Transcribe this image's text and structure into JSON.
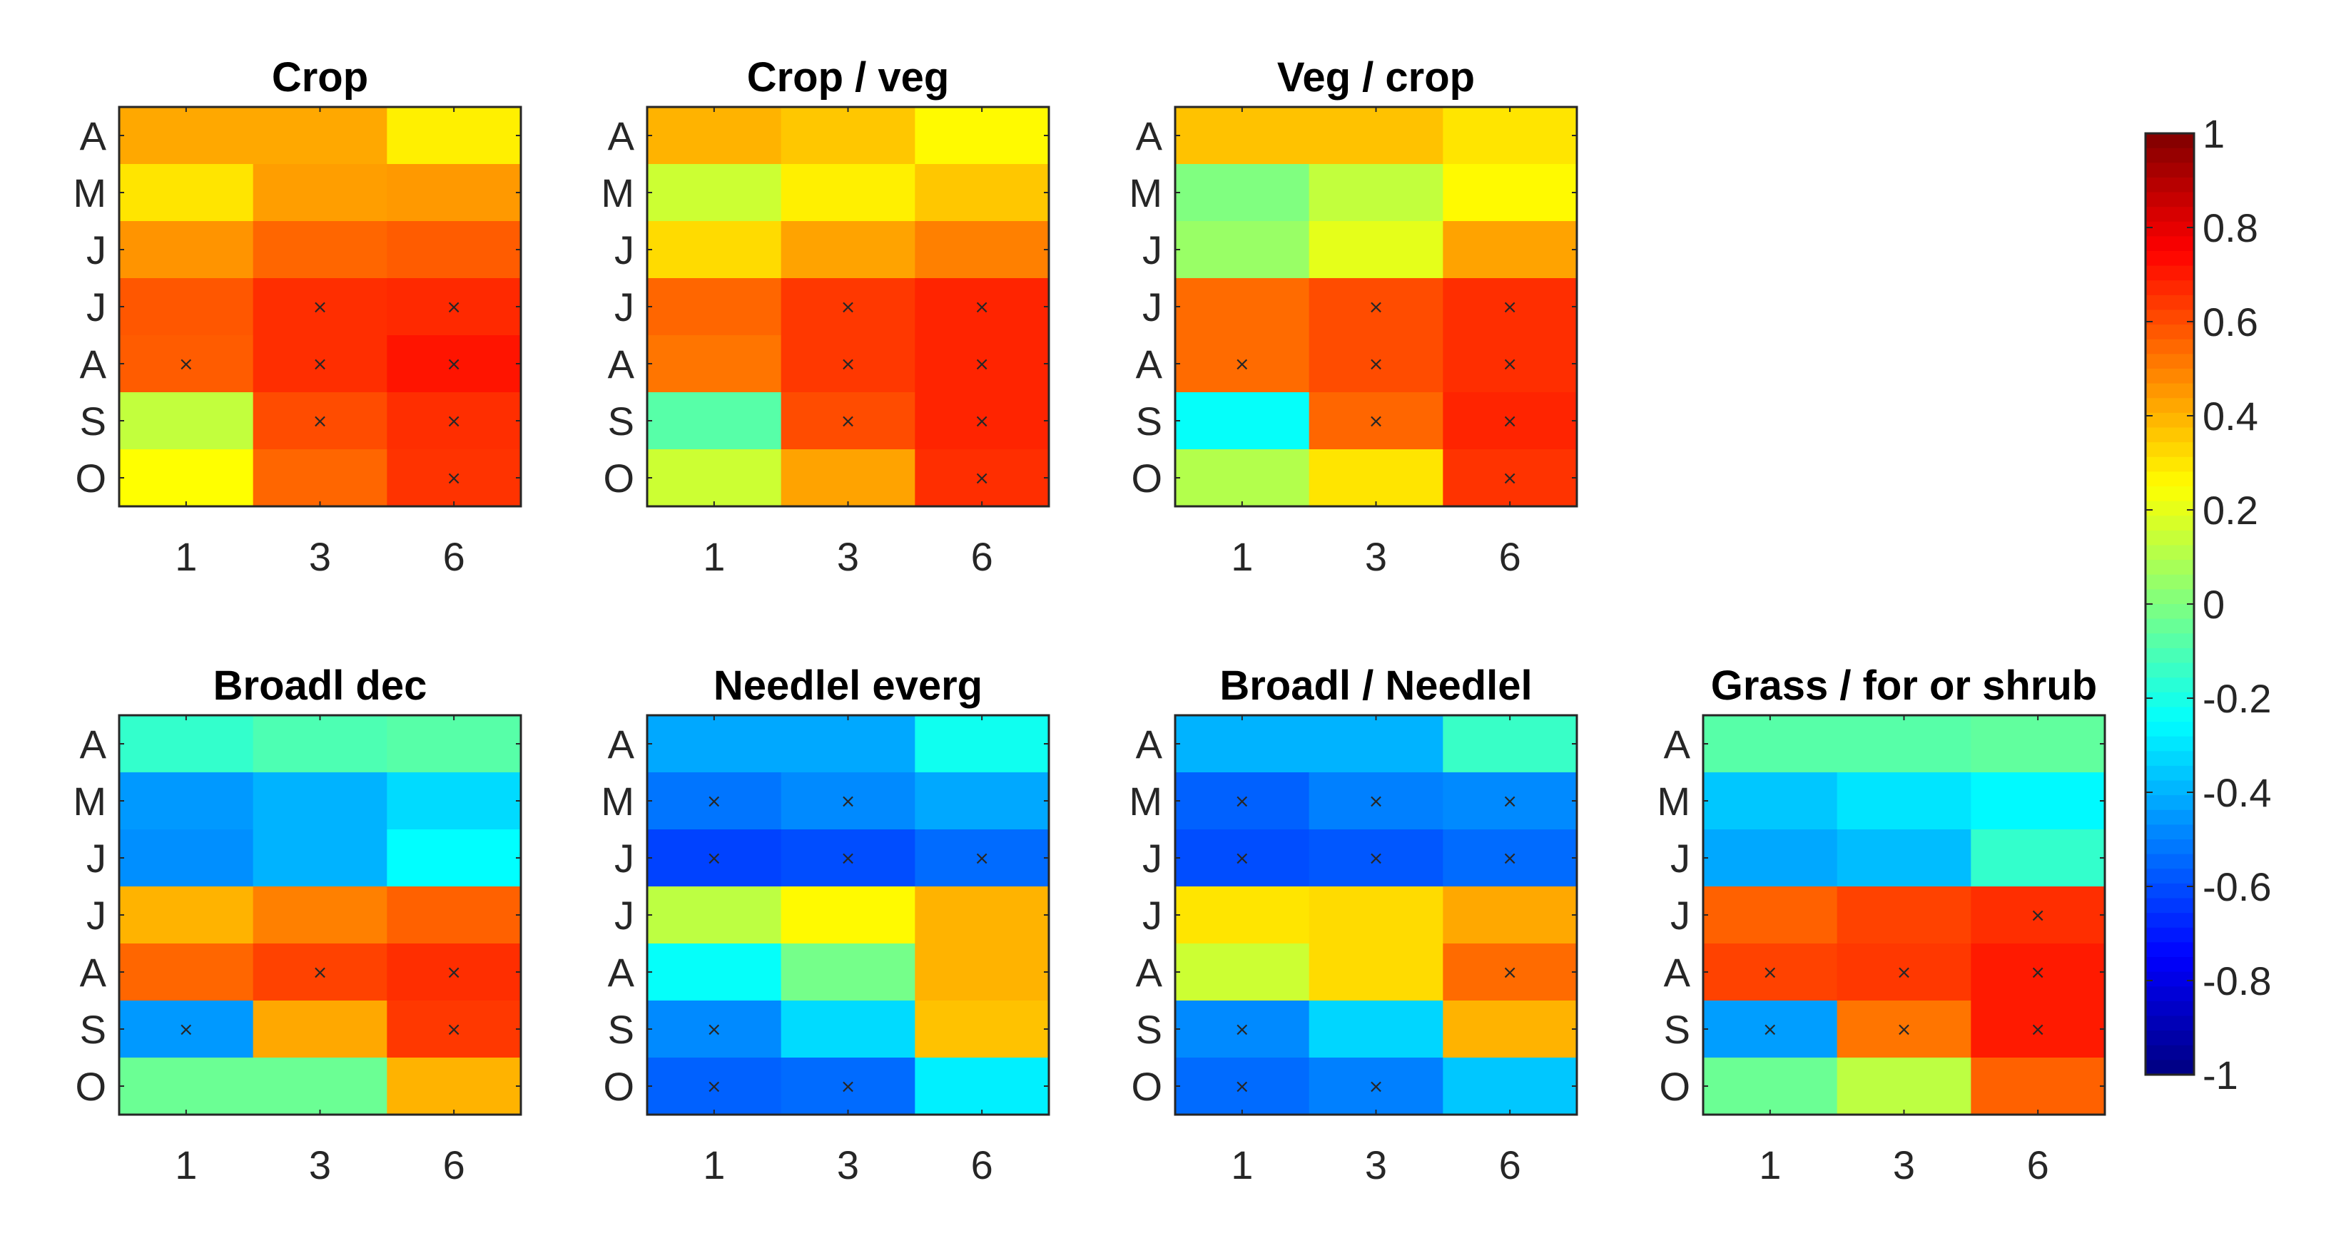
{
  "chart_data": [
    {
      "type": "heatmap",
      "title": "Crop",
      "x_tick_labels": [
        "1",
        "3",
        "6"
      ],
      "y_tick_labels": [
        "A",
        "M",
        "J",
        "J",
        "A",
        "S",
        "O"
      ],
      "values": [
        [
          0.42,
          0.42,
          0.28
        ],
        [
          0.3,
          0.44,
          0.45
        ],
        [
          0.46,
          0.55,
          0.57
        ],
        [
          0.58,
          0.66,
          0.67
        ],
        [
          0.57,
          0.66,
          0.71
        ],
        [
          0.13,
          0.6,
          0.66
        ],
        [
          0.25,
          0.55,
          0.65
        ]
      ],
      "significant": [
        [
          0,
          0,
          0
        ],
        [
          0,
          0,
          0
        ],
        [
          0,
          0,
          0
        ],
        [
          0,
          1,
          1
        ],
        [
          1,
          1,
          1
        ],
        [
          0,
          1,
          1
        ],
        [
          0,
          0,
          1
        ]
      ]
    },
    {
      "type": "heatmap",
      "title": "Crop / veg",
      "x_tick_labels": [
        "1",
        "3",
        "6"
      ],
      "y_tick_labels": [
        "A",
        "M",
        "J",
        "J",
        "A",
        "S",
        "O"
      ],
      "values": [
        [
          0.4,
          0.36,
          0.26
        ],
        [
          0.15,
          0.28,
          0.36
        ],
        [
          0.32,
          0.43,
          0.5
        ],
        [
          0.55,
          0.64,
          0.68
        ],
        [
          0.52,
          0.64,
          0.68
        ],
        [
          -0.08,
          0.6,
          0.68
        ],
        [
          0.15,
          0.43,
          0.66
        ]
      ],
      "significant": [
        [
          0,
          0,
          0
        ],
        [
          0,
          0,
          0
        ],
        [
          0,
          0,
          0
        ],
        [
          0,
          1,
          1
        ],
        [
          0,
          1,
          1
        ],
        [
          0,
          1,
          1
        ],
        [
          0,
          0,
          1
        ]
      ]
    },
    {
      "type": "heatmap",
      "title": "Veg / crop",
      "x_tick_labels": [
        "1",
        "3",
        "6"
      ],
      "y_tick_labels": [
        "A",
        "M",
        "J",
        "J",
        "A",
        "S",
        "O"
      ],
      "values": [
        [
          0.37,
          0.37,
          0.3
        ],
        [
          0.0,
          0.13,
          0.26
        ],
        [
          0.05,
          0.2,
          0.43
        ],
        [
          0.54,
          0.6,
          0.66
        ],
        [
          0.54,
          0.6,
          0.66
        ],
        [
          -0.24,
          0.55,
          0.68
        ],
        [
          0.1,
          0.3,
          0.65
        ]
      ],
      "significant": [
        [
          0,
          0,
          0
        ],
        [
          0,
          0,
          0
        ],
        [
          0,
          0,
          0
        ],
        [
          0,
          1,
          1
        ],
        [
          1,
          1,
          1
        ],
        [
          0,
          1,
          1
        ],
        [
          0,
          0,
          1
        ]
      ]
    },
    {
      "type": "heatmap",
      "title": "Broadl dec",
      "x_tick_labels": [
        "1",
        "3",
        "6"
      ],
      "y_tick_labels": [
        "A",
        "M",
        "J",
        "J",
        "A",
        "S",
        "O"
      ],
      "values": [
        [
          -0.15,
          -0.1,
          -0.08
        ],
        [
          -0.45,
          -0.4,
          -0.32
        ],
        [
          -0.47,
          -0.4,
          -0.25
        ],
        [
          0.4,
          0.5,
          0.56
        ],
        [
          0.55,
          0.62,
          0.66
        ],
        [
          -0.45,
          0.42,
          0.64
        ],
        [
          -0.04,
          -0.04,
          0.4
        ]
      ],
      "significant": [
        [
          0,
          0,
          0
        ],
        [
          0,
          0,
          0
        ],
        [
          0,
          0,
          0
        ],
        [
          0,
          0,
          0
        ],
        [
          0,
          1,
          1
        ],
        [
          1,
          0,
          1
        ],
        [
          0,
          0,
          0
        ]
      ]
    },
    {
      "type": "heatmap",
      "title": "Needlel everg",
      "x_tick_labels": [
        "1",
        "3",
        "6"
      ],
      "y_tick_labels": [
        "A",
        "M",
        "J",
        "J",
        "A",
        "S",
        "O"
      ],
      "values": [
        [
          -0.42,
          -0.42,
          -0.22
        ],
        [
          -0.52,
          -0.48,
          -0.42
        ],
        [
          -0.62,
          -0.6,
          -0.54
        ],
        [
          0.12,
          0.26,
          0.4
        ],
        [
          -0.24,
          -0.02,
          0.4
        ],
        [
          -0.48,
          -0.32,
          0.37
        ],
        [
          -0.56,
          -0.54,
          -0.28
        ]
      ],
      "significant": [
        [
          0,
          0,
          0
        ],
        [
          1,
          1,
          0
        ],
        [
          1,
          1,
          1
        ],
        [
          0,
          0,
          0
        ],
        [
          0,
          0,
          0
        ],
        [
          1,
          0,
          0
        ],
        [
          1,
          1,
          0
        ]
      ]
    },
    {
      "type": "heatmap",
      "title": "Broadl / Needlel",
      "x_tick_labels": [
        "1",
        "3",
        "6"
      ],
      "y_tick_labels": [
        "A",
        "M",
        "J",
        "J",
        "A",
        "S",
        "O"
      ],
      "values": [
        [
          -0.4,
          -0.4,
          -0.14
        ],
        [
          -0.56,
          -0.5,
          -0.48
        ],
        [
          -0.6,
          -0.58,
          -0.54
        ],
        [
          0.3,
          0.32,
          0.42
        ],
        [
          0.15,
          0.32,
          0.54
        ],
        [
          -0.48,
          -0.33,
          0.4
        ],
        [
          -0.54,
          -0.5,
          -0.36
        ]
      ],
      "significant": [
        [
          0,
          0,
          0
        ],
        [
          1,
          1,
          1
        ],
        [
          1,
          1,
          1
        ],
        [
          0,
          0,
          0
        ],
        [
          0,
          0,
          1
        ],
        [
          1,
          0,
          0
        ],
        [
          1,
          1,
          0
        ]
      ]
    },
    {
      "type": "heatmap",
      "title": "Grass / for or shrub",
      "x_tick_labels": [
        "1",
        "3",
        "6"
      ],
      "y_tick_labels": [
        "A",
        "M",
        "J",
        "J",
        "A",
        "S",
        "O"
      ],
      "values": [
        [
          -0.08,
          -0.08,
          -0.06
        ],
        [
          -0.36,
          -0.3,
          -0.26
        ],
        [
          -0.42,
          -0.38,
          -0.15
        ],
        [
          0.56,
          0.62,
          0.66
        ],
        [
          0.62,
          0.64,
          0.7
        ],
        [
          -0.44,
          0.52,
          0.7
        ],
        [
          -0.04,
          0.12,
          0.56
        ]
      ],
      "significant": [
        [
          0,
          0,
          0
        ],
        [
          0,
          0,
          0
        ],
        [
          0,
          0,
          0
        ],
        [
          0,
          0,
          1
        ],
        [
          1,
          1,
          1
        ],
        [
          1,
          1,
          1
        ],
        [
          0,
          0,
          0
        ]
      ]
    }
  ],
  "colorbar": {
    "colormap": "jet",
    "range": [
      -1,
      1
    ],
    "tick_values": [
      1,
      0.8,
      0.6,
      0.4,
      0.2,
      0,
      -0.2,
      -0.4,
      -0.6,
      -0.8,
      -1
    ],
    "tick_labels": [
      "1",
      "0.8",
      "0.6",
      "0.4",
      "0.2",
      "0",
      "-0.2",
      "-0.4",
      "-0.6",
      "-0.8",
      "-1"
    ]
  },
  "significance_marker": "×"
}
